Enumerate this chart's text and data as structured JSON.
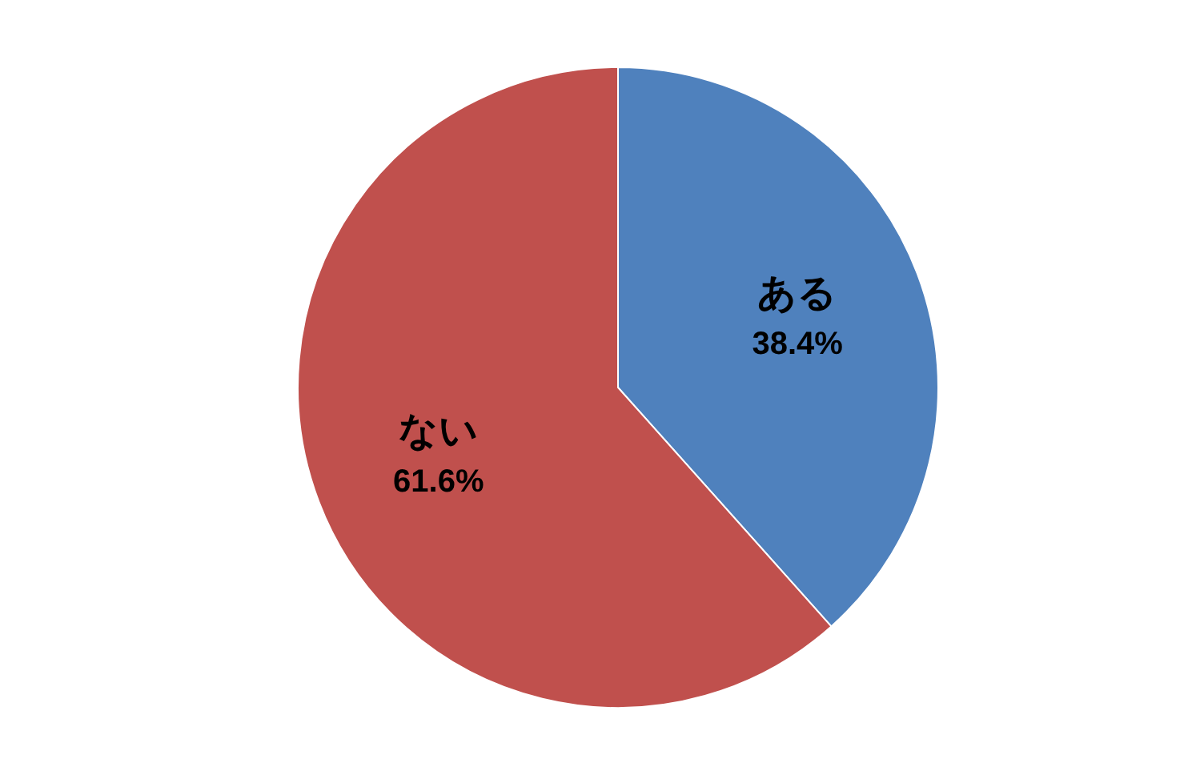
{
  "chart_data": {
    "type": "pie",
    "categories": [
      "ある",
      "ない"
    ],
    "values": [
      38.4,
      61.6
    ],
    "colors": [
      "#4f81bd",
      "#c0504d"
    ],
    "value_labels": [
      "38.4%",
      "61.6%"
    ]
  }
}
